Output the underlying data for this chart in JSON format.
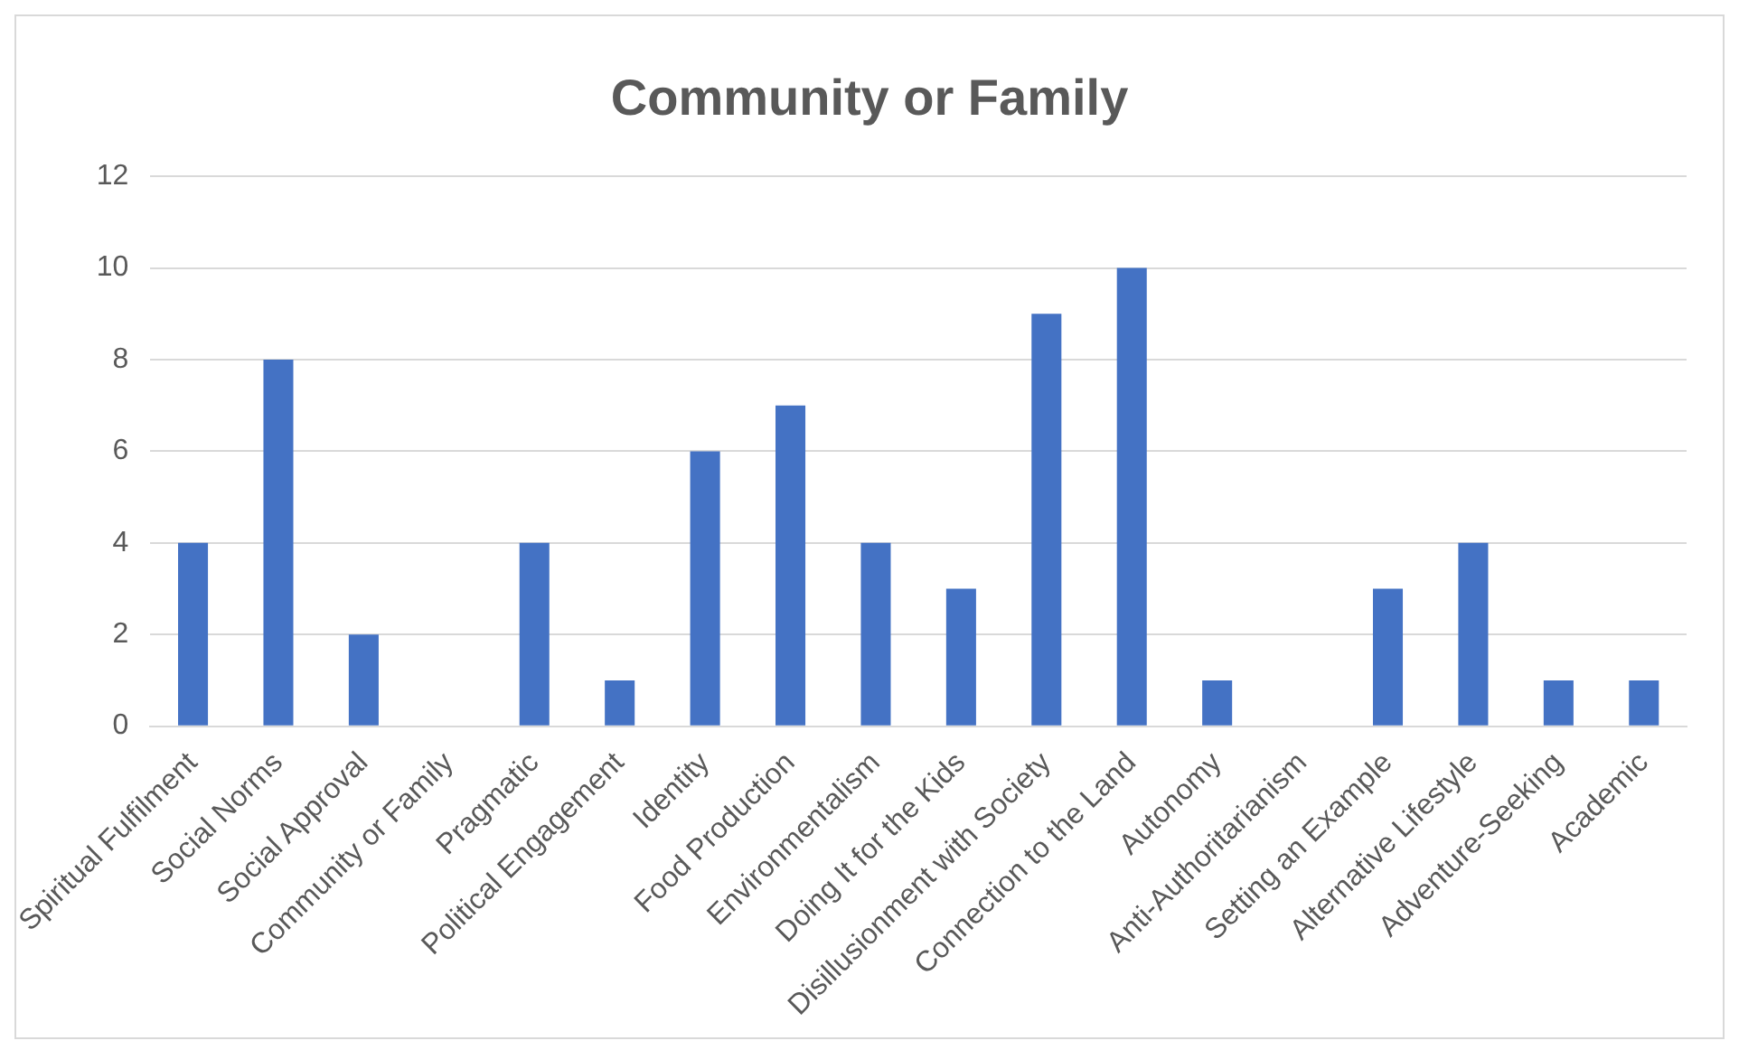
{
  "chart_data": {
    "type": "bar",
    "title": "Community or Family",
    "categories": [
      "Spiritual Fulfilment",
      "Social Norms",
      "Social Approval",
      "Community or Family",
      "Pragmatic",
      "Political Engagement",
      "Identity",
      "Food Production",
      "Environmentalism",
      "Doing It for the Kids",
      "Disillusionment with Society",
      "Connection to the Land",
      "Autonomy",
      "Anti-Authoritarianism",
      "Setting an Example",
      "Alternative Lifestyle",
      "Adventure-Seeking",
      "Academic"
    ],
    "values": [
      4,
      8,
      2,
      0,
      4,
      1,
      6,
      7,
      4,
      3,
      9,
      10,
      1,
      0,
      3,
      4,
      1,
      1
    ],
    "color": "#4472c4",
    "ylim": [
      0,
      12
    ],
    "yticks": [
      0,
      2,
      4,
      6,
      8,
      10,
      12
    ],
    "grid": "y",
    "legend": false
  }
}
